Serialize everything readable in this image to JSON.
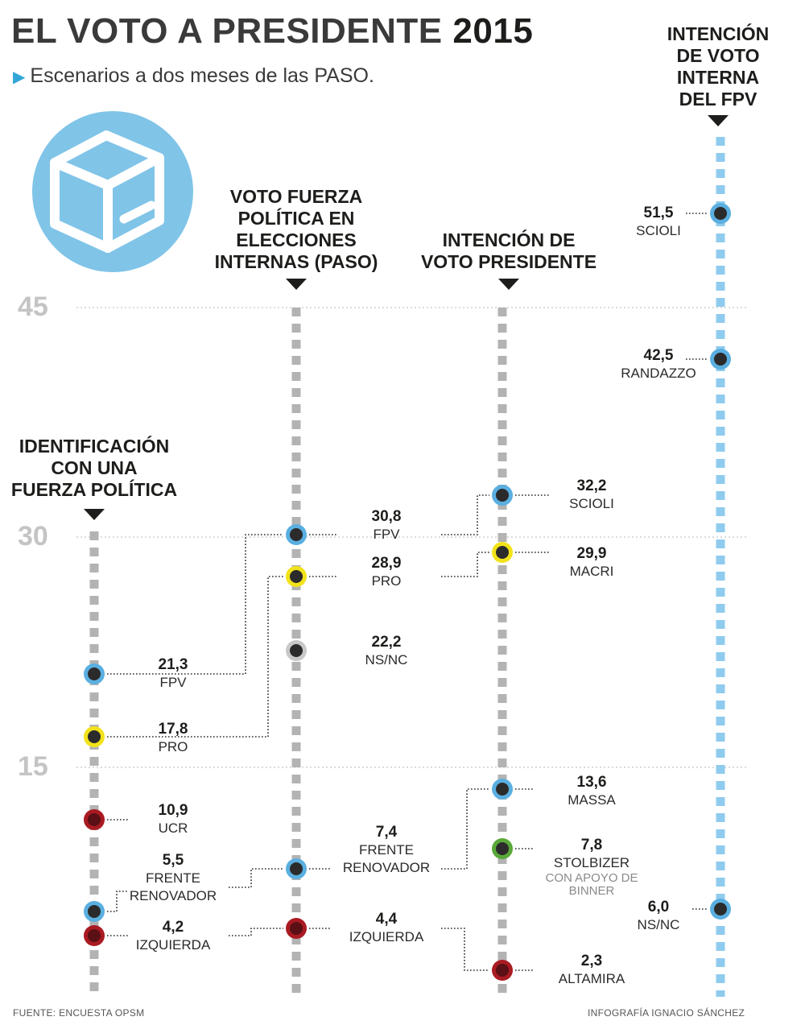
{
  "title": {
    "main": "EL VOTO A PRESIDENTE",
    "year": "2015"
  },
  "subtitle": "Escenarios a dos meses de las PASO.",
  "footer": {
    "source": "FUENTE: ENCUESTA OPSM",
    "credit": "INFOGRAFÍA IGNACIO SÁNCHEZ"
  },
  "colors": {
    "fpv_blue": "#5aafe0",
    "pro_yellow": "#f2e21b",
    "ucr_red": "#a91b22",
    "nsnc_gray": "#c8c8c8",
    "green": "#5aa839",
    "track_gray": "#b3b3b3",
    "track_blue": "#8fcbee",
    "dot_core": "#2b2b2b",
    "axis_text": "#c4c4c4"
  },
  "chart_data": {
    "type": "scatter",
    "y_ticks": [
      "45",
      "30",
      "15"
    ],
    "columns": [
      {
        "id": "identificacion",
        "header": "IDENTIFICACIÓN\nCON UNA\nFUERZA POLÍTICA",
        "points": [
          {
            "value": "21,3",
            "name": "FPV",
            "y": 21.3,
            "color": "#5aafe0"
          },
          {
            "value": "17,8",
            "name": "PRO",
            "y": 17.8,
            "color": "#f2e21b"
          },
          {
            "value": "10,9",
            "name": "UCR",
            "y": 10.9,
            "color": "#a91b22"
          },
          {
            "value": "5,5",
            "name": "FRENTE\nRENOVADOR",
            "y": 5.5,
            "color": "#5aafe0"
          },
          {
            "value": "4,2",
            "name": "IZQUIERDA",
            "y": 4.2,
            "color": "#a91b22"
          }
        ]
      },
      {
        "id": "paso",
        "header": "VOTO  FUERZA\nPOLÍTICA EN\nELECCIONES\nINTERNAS (PASO)",
        "points": [
          {
            "value": "30,8",
            "name": "FPV",
            "y": 30.8,
            "color": "#5aafe0"
          },
          {
            "value": "28,9",
            "name": "PRO",
            "y": 28.9,
            "color": "#f2e21b"
          },
          {
            "value": "22,2",
            "name": "NS/NC",
            "y": 22.2,
            "color": "#c8c8c8"
          },
          {
            "value": "7,4",
            "name": "FRENTE\nRENOVADOR",
            "y": 7.4,
            "color": "#5aafe0"
          },
          {
            "value": "4,4",
            "name": "IZQUIERDA",
            "y": 4.4,
            "color": "#a91b22"
          }
        ]
      },
      {
        "id": "presidente",
        "header": "INTENCIÓN DE\nVOTO PRESIDENTE",
        "points": [
          {
            "value": "32,2",
            "name": "SCIOLI",
            "y": 32.2,
            "color": "#5aafe0"
          },
          {
            "value": "29,9",
            "name": "MACRI",
            "y": 29.9,
            "color": "#f2e21b"
          },
          {
            "value": "13,6",
            "name": "MASSA",
            "y": 13.6,
            "color": "#5aafe0"
          },
          {
            "value": "7,8",
            "name": "STOLBIZER",
            "sub": "CON APOYO DE\nBINNER",
            "y": 7.8,
            "color": "#5aa839"
          },
          {
            "value": "2,3",
            "name": "ALTAMIRA",
            "y": 2.3,
            "color": "#a91b22"
          }
        ]
      },
      {
        "id": "interna_fpv",
        "header": "INTENCIÓN\nDE VOTO\nINTERNA\nDEL FPV",
        "points": [
          {
            "value": "51,5",
            "name": "SCIOLI",
            "y": 51.5,
            "color": "#5aafe0"
          },
          {
            "value": "42,5",
            "name": "RANDAZZO",
            "y": 42.5,
            "color": "#5aafe0"
          },
          {
            "value": "6,0",
            "name": "NS/NC",
            "y": 6.0,
            "color": "#5aafe0"
          }
        ]
      }
    ]
  }
}
